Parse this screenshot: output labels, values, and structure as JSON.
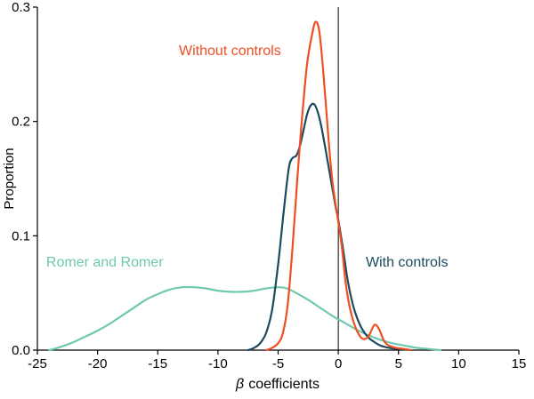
{
  "chart_data": {
    "type": "line",
    "title": "",
    "xlabel": "β coefficients",
    "xlabel_symbol": "β",
    "xlabel_rest": "coefficients",
    "ylabel": "Proportion",
    "xlim": [
      -25,
      15
    ],
    "ylim": [
      0,
      0.3
    ],
    "xticks": [
      -25,
      -20,
      -15,
      -10,
      -5,
      0,
      5,
      10,
      15
    ],
    "yticks": [
      0,
      0.1,
      0.2,
      0.3
    ],
    "zero_line_x": 0,
    "grid": false,
    "legend_position": "none (direct labels)",
    "colors": {
      "without_controls": "#f04e23",
      "with_controls": "#1b4a5e",
      "romer_and_romer": "#6fc9b0",
      "axis": "#000000"
    },
    "series": [
      {
        "id": "romer-and-romer",
        "name": "Romer and Romer",
        "color": "#6fc9b0",
        "points": [
          [
            -24,
            0
          ],
          [
            -23,
            0.003
          ],
          [
            -22,
            0.007
          ],
          [
            -21,
            0.012
          ],
          [
            -20,
            0.017
          ],
          [
            -19,
            0.023
          ],
          [
            -18,
            0.03
          ],
          [
            -17,
            0.037
          ],
          [
            -16,
            0.044
          ],
          [
            -15,
            0.049
          ],
          [
            -14,
            0.053
          ],
          [
            -13,
            0.055
          ],
          [
            -12,
            0.055
          ],
          [
            -11,
            0.054
          ],
          [
            -10,
            0.052
          ],
          [
            -9,
            0.051
          ],
          [
            -8,
            0.051
          ],
          [
            -7,
            0.052
          ],
          [
            -6,
            0.054
          ],
          [
            -5,
            0.055
          ],
          [
            -4.3,
            0.054
          ],
          [
            -3.5,
            0.05
          ],
          [
            -2.5,
            0.044
          ],
          [
            -1.5,
            0.037
          ],
          [
            -0.5,
            0.03
          ],
          [
            0.5,
            0.024
          ],
          [
            1.5,
            0.018
          ],
          [
            2.5,
            0.013
          ],
          [
            3.5,
            0.009
          ],
          [
            4.5,
            0.006
          ],
          [
            5.5,
            0.004
          ],
          [
            6.5,
            0.002
          ],
          [
            7.5,
            0.001
          ],
          [
            8.5,
            0
          ]
        ]
      },
      {
        "id": "with-controls",
        "name": "With controls",
        "color": "#1b4a5e",
        "points": [
          [
            -7.5,
            0
          ],
          [
            -7,
            0.002
          ],
          [
            -6.5,
            0.006
          ],
          [
            -6,
            0.015
          ],
          [
            -5.5,
            0.035
          ],
          [
            -5,
            0.075
          ],
          [
            -4.5,
            0.125
          ],
          [
            -4.1,
            0.16
          ],
          [
            -3.8,
            0.168
          ],
          [
            -3.5,
            0.17
          ],
          [
            -3.2,
            0.178
          ],
          [
            -2.9,
            0.192
          ],
          [
            -2.6,
            0.206
          ],
          [
            -2.3,
            0.214
          ],
          [
            -2,
            0.215
          ],
          [
            -1.7,
            0.208
          ],
          [
            -1.4,
            0.195
          ],
          [
            -1,
            0.172
          ],
          [
            -0.6,
            0.148
          ],
          [
            -0.2,
            0.124
          ],
          [
            0,
            0.114
          ],
          [
            0.4,
            0.088
          ],
          [
            0.8,
            0.06
          ],
          [
            1.2,
            0.04
          ],
          [
            1.6,
            0.027
          ],
          [
            2,
            0.018
          ],
          [
            2.5,
            0.011
          ],
          [
            3,
            0.007
          ],
          [
            3.5,
            0.004
          ],
          [
            4,
            0.0025
          ],
          [
            4.5,
            0.0015
          ],
          [
            5,
            0.001
          ],
          [
            6,
            0
          ]
        ]
      },
      {
        "id": "without-controls",
        "name": "Without controls",
        "color": "#f04e23",
        "points": [
          [
            -6,
            0
          ],
          [
            -5.5,
            0.002
          ],
          [
            -5,
            0.006
          ],
          [
            -4.6,
            0.015
          ],
          [
            -4.2,
            0.04
          ],
          [
            -3.8,
            0.09
          ],
          [
            -3.4,
            0.15
          ],
          [
            -3,
            0.205
          ],
          [
            -2.6,
            0.25
          ],
          [
            -2.2,
            0.275
          ],
          [
            -1.9,
            0.287
          ],
          [
            -1.6,
            0.28
          ],
          [
            -1.3,
            0.25
          ],
          [
            -1,
            0.21
          ],
          [
            -0.7,
            0.17
          ],
          [
            -0.4,
            0.14
          ],
          [
            0,
            0.112
          ],
          [
            0.3,
            0.09
          ],
          [
            0.6,
            0.06
          ],
          [
            1,
            0.035
          ],
          [
            1.5,
            0.018
          ],
          [
            2,
            0.01
          ],
          [
            2.5,
            0.012
          ],
          [
            3,
            0.022
          ],
          [
            3.4,
            0.018
          ],
          [
            3.8,
            0.008
          ],
          [
            4.2,
            0.004
          ],
          [
            4.8,
            0.002
          ],
          [
            5.5,
            0.001
          ],
          [
            6,
            0
          ]
        ]
      }
    ],
    "annotations": [
      {
        "id": "without-controls-label",
        "text": "Without controls",
        "x": -9,
        "y": 0.258,
        "color": "#f04e23"
      },
      {
        "id": "romer-and-romer-label",
        "text": "Romer and Romer",
        "x": -19.4,
        "y": 0.073,
        "color": "#6fc9b0"
      },
      {
        "id": "with-controls-label",
        "text": "With controls",
        "x": 5.7,
        "y": 0.073,
        "color": "#1b4a5e"
      }
    ]
  }
}
